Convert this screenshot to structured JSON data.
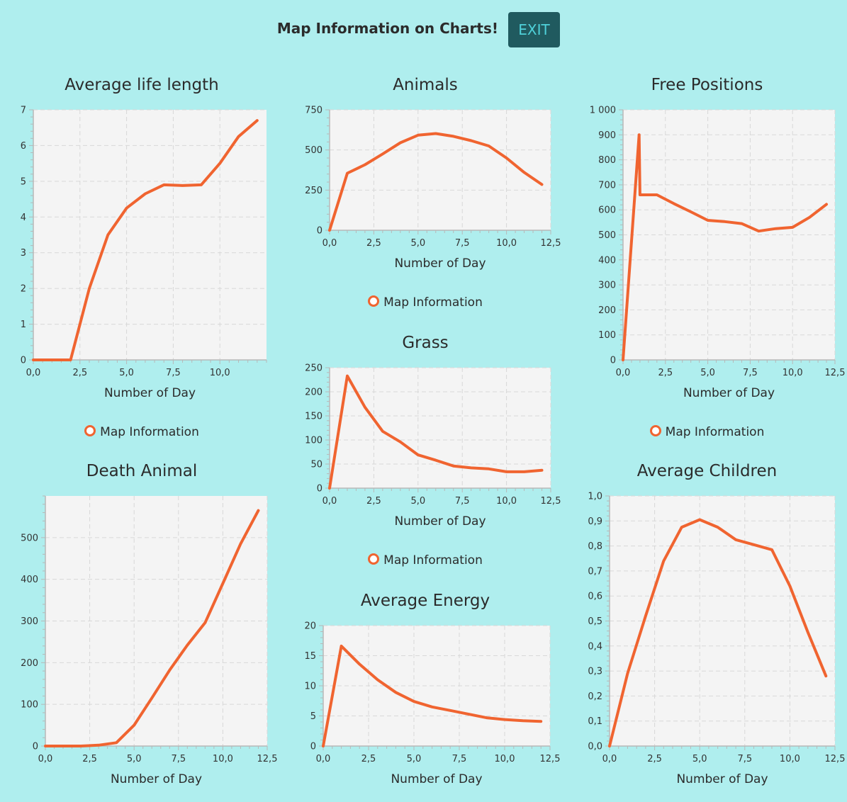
{
  "header": {
    "title": "Map Information on Charts!",
    "exit_label": "EXIT"
  },
  "colors": {
    "background": "#afeeee",
    "plot_bg": "#f4f4f4",
    "line": "#f06430",
    "exit_bg": "#205a5f",
    "exit_text": "#4fd1d9"
  },
  "legend_label": "Map Information",
  "chart_data": [
    {
      "id": "life",
      "type": "line",
      "title": "Average life length",
      "xlabel": "Number of Day",
      "ylabel": "",
      "legend": "Map Information",
      "x": [
        0,
        1,
        2,
        3,
        4,
        5,
        6,
        7,
        8,
        9,
        10,
        11,
        12
      ],
      "y": [
        0,
        0,
        0,
        2.0,
        3.5,
        4.25,
        4.65,
        4.9,
        4.88,
        4.9,
        5.5,
        6.25,
        6.7
      ],
      "xlim": [
        0,
        12.5
      ],
      "ylim": [
        0,
        7
      ],
      "xticks": [
        "0,0",
        "2,5",
        "5,0",
        "7,5",
        "10,0"
      ],
      "yticks": [
        "0",
        "1",
        "2",
        "3",
        "4",
        "5",
        "6",
        "7"
      ]
    },
    {
      "id": "animals",
      "type": "line",
      "title": "Animals",
      "xlabel": "Number of Day",
      "ylabel": "",
      "legend": "Map Information",
      "x": [
        0,
        1,
        2,
        3,
        4,
        5,
        6,
        7,
        8,
        9,
        10,
        11,
        12
      ],
      "y": [
        0,
        355,
        408,
        475,
        545,
        592,
        602,
        585,
        558,
        525,
        450,
        360,
        285
      ],
      "xlim": [
        0,
        12.5
      ],
      "ylim": [
        0,
        750
      ],
      "xticks": [
        "0,0",
        "2,5",
        "5,0",
        "7,5",
        "10,0",
        "12,5"
      ],
      "yticks": [
        "0",
        "250",
        "500",
        "750"
      ]
    },
    {
      "id": "free",
      "type": "line",
      "title": "Free Positions",
      "xlabel": "Number of Day",
      "ylabel": "",
      "legend": "Map Information",
      "x": [
        0,
        0.95,
        1,
        2,
        3,
        4,
        5,
        6,
        7,
        8,
        9,
        10,
        11,
        12
      ],
      "y": [
        0,
        900,
        660,
        660,
        625,
        592,
        558,
        553,
        545,
        515,
        525,
        530,
        570,
        622
      ],
      "xlim": [
        0,
        12.5
      ],
      "ylim": [
        0,
        1000
      ],
      "xticks": [
        "0,0",
        "2,5",
        "5,0",
        "7,5",
        "10,0",
        "12,5"
      ],
      "yticks": [
        "0",
        "100",
        "200",
        "300",
        "400",
        "500",
        "600",
        "700",
        "800",
        "900",
        "1 000"
      ]
    },
    {
      "id": "grass",
      "type": "line",
      "title": "Grass",
      "xlabel": "Number of Day",
      "ylabel": "",
      "legend": "Map Information",
      "x": [
        0,
        1,
        2,
        3,
        4,
        5,
        6,
        7,
        8,
        9,
        10,
        11,
        12
      ],
      "y": [
        0,
        233,
        168,
        118,
        96,
        69,
        58,
        46,
        42,
        40,
        34,
        34,
        37
      ],
      "xlim": [
        0,
        12.5
      ],
      "ylim": [
        0,
        250
      ],
      "xticks": [
        "0,0",
        "2,5",
        "5,0",
        "7,5",
        "10,0",
        "12,5"
      ],
      "yticks": [
        "0",
        "50",
        "100",
        "150",
        "200",
        "250"
      ]
    },
    {
      "id": "death",
      "type": "line",
      "title": "Death Animal",
      "xlabel": "Number of Day",
      "ylabel": "",
      "legend": "",
      "x": [
        0,
        1,
        2,
        3,
        4,
        5,
        6,
        7,
        8,
        9,
        10,
        11,
        12
      ],
      "y": [
        0,
        0,
        0,
        2,
        8,
        50,
        115,
        182,
        242,
        296,
        390,
        485,
        565
      ],
      "xlim": [
        0,
        12.5
      ],
      "ylim": [
        0,
        600
      ],
      "xticks": [
        "0,0",
        "2,5",
        "5,0",
        "7,5",
        "10,0",
        "12,5"
      ],
      "yticks": [
        "0",
        "100",
        "200",
        "300",
        "400",
        "500"
      ]
    },
    {
      "id": "energy",
      "type": "line",
      "title": "Average Energy",
      "xlabel": "Number of Day",
      "ylabel": "",
      "legend": "",
      "x": [
        0,
        1,
        2,
        3,
        4,
        5,
        6,
        7,
        8,
        9,
        10,
        11,
        12
      ],
      "y": [
        0,
        16.6,
        13.6,
        11.0,
        8.9,
        7.4,
        6.5,
        5.9,
        5.3,
        4.7,
        4.4,
        4.2,
        4.1
      ],
      "xlim": [
        0,
        12.5
      ],
      "ylim": [
        0,
        20
      ],
      "xticks": [
        "0,0",
        "2,5",
        "5,0",
        "7,5",
        "10,0",
        "12,5"
      ],
      "yticks": [
        "0",
        "5",
        "10",
        "15",
        "20"
      ]
    },
    {
      "id": "children",
      "type": "line",
      "title": "Average Children",
      "xlabel": "Number of Day",
      "ylabel": "",
      "legend": "",
      "x": [
        0,
        1,
        2,
        3,
        4,
        5,
        6,
        7,
        8,
        9,
        10,
        11,
        12
      ],
      "y": [
        0,
        0.29,
        0.52,
        0.74,
        0.875,
        0.905,
        0.875,
        0.825,
        0.805,
        0.785,
        0.64,
        0.455,
        0.28
      ],
      "xlim": [
        0,
        12.5
      ],
      "ylim": [
        0,
        1
      ],
      "xticks": [
        "0,0",
        "2,5",
        "5,0",
        "7,5",
        "10,0",
        "12,5"
      ],
      "yticks": [
        "0,0",
        "0,1",
        "0,2",
        "0,3",
        "0,4",
        "0,5",
        "0,6",
        "0,7",
        "0,8",
        "0,9",
        "1,0"
      ]
    }
  ]
}
